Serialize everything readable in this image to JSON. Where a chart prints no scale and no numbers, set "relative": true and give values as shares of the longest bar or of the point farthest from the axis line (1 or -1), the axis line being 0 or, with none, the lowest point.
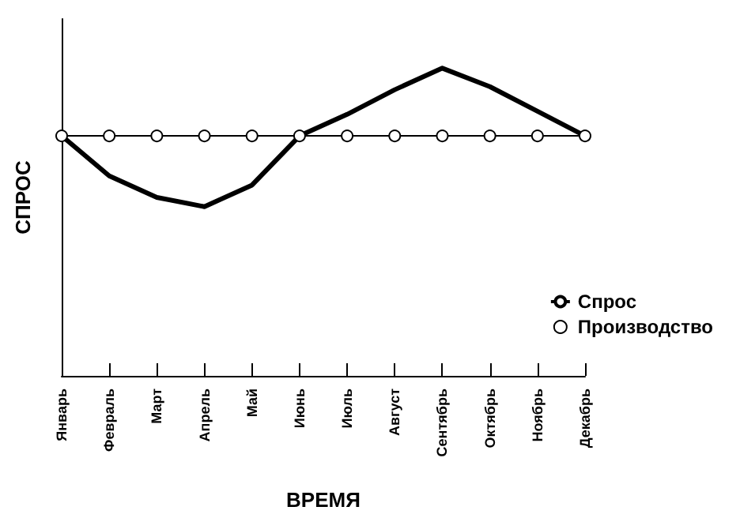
{
  "chart_data": {
    "type": "line",
    "xlabel": "ВРЕМЯ",
    "ylabel": "СПРОС",
    "relative": true,
    "legend": "right",
    "categories": [
      "Январь",
      "Февраль",
      "Март",
      "Апрель",
      "Май",
      "Июнь",
      "Июль",
      "Август",
      "Сентябрь",
      "Октябрь",
      "Ноябрь",
      "Декабрь"
    ],
    "series": [
      {
        "name": "Спрос",
        "color": "#000000",
        "marker": "none",
        "values": [
          0.78,
          0.65,
          0.58,
          0.55,
          0.62,
          0.78,
          0.85,
          0.93,
          1,
          0.94,
          0.86,
          0.78
        ]
      },
      {
        "name": "Производство",
        "color": "#000000",
        "marker": "circle",
        "values": [
          0.78,
          0.78,
          0.78,
          0.78,
          0.78,
          0.78,
          0.78,
          0.78,
          0.78,
          0.78,
          0.78,
          0.78
        ]
      }
    ]
  }
}
